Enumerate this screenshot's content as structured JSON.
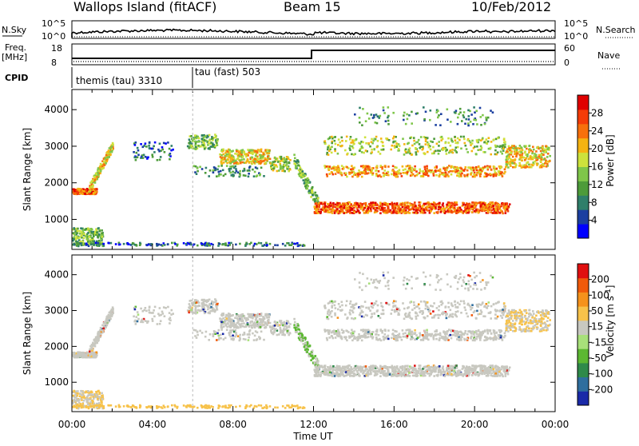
{
  "header": {
    "station": "Wallops Island (fitACF)",
    "beam": "Beam 15",
    "date": "10/Feb/2012"
  },
  "status_panel": {
    "nsky_label": "N.Sky",
    "nsearch_label": "N.Search",
    "noise_ticks_left": [
      "10^5",
      "10^0"
    ],
    "noise_ticks_right": [
      "10^5",
      "10^0"
    ],
    "freq_label": [
      "Freq.",
      "[MHz]"
    ],
    "freq_ticks": [
      "18",
      "8"
    ],
    "nave_label": "Nave",
    "nave_ticks": [
      "60",
      "0"
    ],
    "cpid_label": "CPID",
    "cpid_modes": [
      {
        "label": "themis (tau) 3310",
        "start_hour": 0
      },
      {
        "label": "tau (fast) 503",
        "start_hour": 6
      }
    ]
  },
  "chart_data": [
    {
      "type": "heatmap",
      "panel": "power",
      "ylabel": "Slant Range [km]",
      "yticks": [
        1000,
        2000,
        3000,
        4000
      ],
      "ylim": [
        180,
        4550
      ],
      "xlabel": "Time UT",
      "xlim": [
        0,
        24
      ],
      "xtick_labels": [
        "00:00",
        "04:00",
        "08:00",
        "12:00",
        "16:00",
        "20:00",
        "00:00"
      ],
      "colorbar": {
        "label": "Power [dB]",
        "ticks": [
          "4",
          "8",
          "12",
          "16",
          "20",
          "24",
          "28"
        ],
        "colors": [
          "#0000ff",
          "#1b3fa0",
          "#2f7f6a",
          "#4d9b3a",
          "#7fc64a",
          "#cde23c",
          "#f5b312",
          "#f7700c",
          "#f43c08",
          "#e00000"
        ]
      }
    },
    {
      "type": "heatmap",
      "panel": "velocity",
      "ylabel": "Slant Range [km]",
      "yticks": [
        1000,
        2000,
        3000,
        4000
      ],
      "ylim": [
        180,
        4550
      ],
      "xlabel": "Time UT",
      "xlim": [
        0,
        24
      ],
      "xtick_labels": [
        "00:00",
        "04:00",
        "08:00",
        "12:00",
        "16:00",
        "20:00",
        "00:00"
      ],
      "colorbar": {
        "label": "Velocity [m s",
        "label_superscript": "-1",
        "label_close": "]",
        "ticks": [
          "200",
          "100",
          "50",
          "15",
          "-15",
          "-50",
          "-100",
          "-200"
        ],
        "colors": [
          "#1a2aa8",
          "#2e6e9e",
          "#2f8a4a",
          "#5cb832",
          "#a8e07a",
          "#c8c8c0",
          "#f7c24a",
          "#f5921c",
          "#f05a0a",
          "#e01010"
        ]
      }
    }
  ]
}
